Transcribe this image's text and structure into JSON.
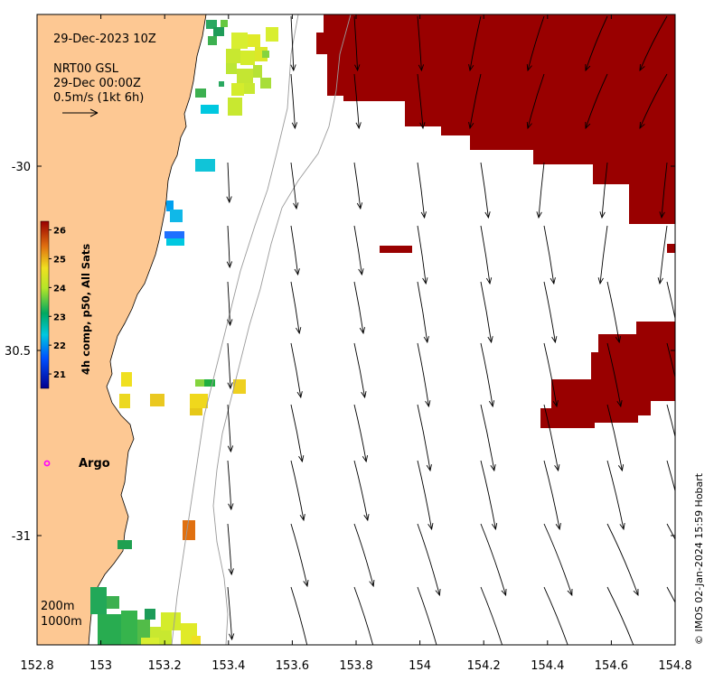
{
  "map": {
    "title_date": "29-Dec-2023 10Z",
    "product": "NRT00 GSL",
    "product_time": "29-Dec 00:00Z",
    "scale_label": "0.5m/s (1kt 6h)",
    "argo_label": "Argo",
    "contour_labels": [
      "200m",
      "1000m"
    ],
    "credit": "© IMOS 02-Jan-2024 15:59 Hobart",
    "x_ticks": [
      "152.8",
      "153",
      "153.2",
      "153.4",
      "153.6",
      "153.8",
      "154",
      "154.2",
      "154.4",
      "154.6",
      "154.8"
    ],
    "y_ticks": [
      "-30",
      "30.5",
      "-31"
    ]
  },
  "colorbar": {
    "label": "4h comp, p50, All Sats",
    "ticks": [
      "26",
      "25",
      "24",
      "23",
      "22",
      "21"
    ],
    "range": [
      20.5,
      26.3
    ]
  },
  "colors": {
    "land": "#fdc893",
    "warm_sst": "#990000",
    "argo_marker": "#ff00ff"
  }
}
